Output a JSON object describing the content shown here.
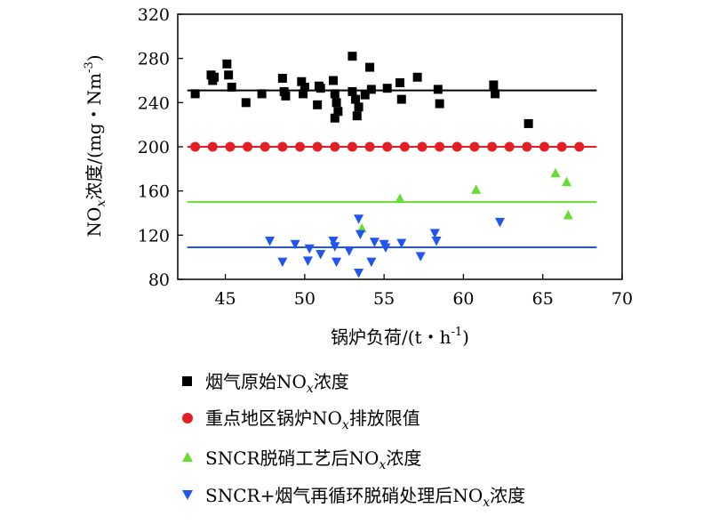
{
  "chart_data": {
    "type": "scatter",
    "xlabel": "锅炉负荷/(t・h⁻¹)",
    "ylabel": "NOₓ浓度/(mg・Nm⁻³)",
    "xlim": [
      42,
      70
    ],
    "ylim": [
      80,
      320
    ],
    "xticks": [
      45,
      50,
      55,
      60,
      65,
      70
    ],
    "yticks": [
      80,
      120,
      160,
      200,
      240,
      280,
      320
    ],
    "grid": false,
    "legend_position": "below",
    "series": [
      {
        "name": "烟气原始NOₓ浓度",
        "marker": "square",
        "color": "#000000",
        "points": [
          [
            43.1,
            248
          ],
          [
            44.1,
            265
          ],
          [
            44.2,
            260
          ],
          [
            44.3,
            263
          ],
          [
            45.1,
            275
          ],
          [
            45.2,
            265
          ],
          [
            45.4,
            254
          ],
          [
            46.3,
            240
          ],
          [
            47.3,
            248
          ],
          [
            48.6,
            262
          ],
          [
            48.7,
            250
          ],
          [
            48.8,
            246
          ],
          [
            49.8,
            259
          ],
          [
            49.9,
            248
          ],
          [
            50.0,
            254
          ],
          [
            50.8,
            238
          ],
          [
            50.9,
            255
          ],
          [
            51.0,
            253
          ],
          [
            51.8,
            260
          ],
          [
            51.9,
            248
          ],
          [
            52.0,
            240
          ],
          [
            51.9,
            226
          ],
          [
            52.1,
            232
          ],
          [
            53.0,
            282
          ],
          [
            53.0,
            250
          ],
          [
            53.2,
            243
          ],
          [
            53.3,
            228
          ],
          [
            53.4,
            236
          ],
          [
            53.8,
            247
          ],
          [
            54.1,
            272
          ],
          [
            54.2,
            252
          ],
          [
            55.2,
            253
          ],
          [
            56.0,
            258
          ],
          [
            56.1,
            243
          ],
          [
            57.1,
            263
          ],
          [
            58.4,
            252
          ],
          [
            58.5,
            239
          ],
          [
            61.9,
            256
          ],
          [
            62.0,
            248
          ],
          [
            64.1,
            221
          ]
        ],
        "trend": {
          "x": [
            42.6,
            68.4
          ],
          "y": [
            251,
            251
          ]
        }
      },
      {
        "name": "重点地区锅炉NOₓ排放限值",
        "marker": "circle",
        "color": "#e31e24",
        "points": [
          [
            43.1,
            200
          ],
          [
            44.2,
            200
          ],
          [
            45.3,
            200
          ],
          [
            46.4,
            200
          ],
          [
            47.5,
            200
          ],
          [
            48.6,
            200
          ],
          [
            49.7,
            200
          ],
          [
            50.8,
            200
          ],
          [
            51.9,
            200
          ],
          [
            53.0,
            200
          ],
          [
            54.1,
            200
          ],
          [
            55.2,
            200
          ],
          [
            56.3,
            200
          ],
          [
            57.4,
            200
          ],
          [
            58.5,
            200
          ],
          [
            59.6,
            200
          ],
          [
            60.7,
            200
          ],
          [
            61.8,
            200
          ],
          [
            62.9,
            200
          ],
          [
            64.0,
            200
          ],
          [
            65.1,
            200
          ],
          [
            66.2,
            200
          ],
          [
            67.3,
            200
          ]
        ],
        "trend": {
          "x": [
            42.6,
            68.4
          ],
          "y": [
            200,
            200
          ]
        }
      },
      {
        "name": "SNCR脱硝工艺后NOₓ浓度",
        "marker": "triangle-up",
        "color": "#66dd33",
        "points": [
          [
            53.6,
            126
          ],
          [
            56.0,
            153
          ],
          [
            60.8,
            161
          ],
          [
            65.8,
            176
          ],
          [
            66.5,
            168
          ],
          [
            66.6,
            138
          ]
        ],
        "trend": {
          "x": [
            42.6,
            68.4
          ],
          "y": [
            150,
            150
          ]
        }
      },
      {
        "name": "SNCR+烟气再循环脱硝处理后NOₓ浓度",
        "marker": "triangle-down",
        "color": "#2255ee",
        "points": [
          [
            47.8,
            115
          ],
          [
            48.6,
            96
          ],
          [
            49.4,
            112
          ],
          [
            50.2,
            97
          ],
          [
            50.3,
            108
          ],
          [
            51.0,
            103
          ],
          [
            51.8,
            115
          ],
          [
            51.9,
            110
          ],
          [
            52.0,
            96
          ],
          [
            52.8,
            106
          ],
          [
            53.4,
            135
          ],
          [
            53.5,
            121
          ],
          [
            53.4,
            86
          ],
          [
            54.2,
            96
          ],
          [
            54.4,
            114
          ],
          [
            55.0,
            112
          ],
          [
            55.1,
            109
          ],
          [
            56.1,
            113
          ],
          [
            57.3,
            101
          ],
          [
            58.2,
            122
          ],
          [
            58.3,
            115
          ],
          [
            62.3,
            132
          ]
        ],
        "trend": {
          "x": [
            42.6,
            68.4
          ],
          "y": [
            109,
            109
          ]
        }
      }
    ]
  },
  "legend": {
    "items": [
      {
        "pre": "烟气原始NO",
        "sub": "x",
        "post": "浓度"
      },
      {
        "pre": "重点地区锅炉NO",
        "sub": "x",
        "post": "排放限值"
      },
      {
        "pre": "SNCR脱硝工艺后NO",
        "sub": "x",
        "post": "浓度"
      },
      {
        "pre": "SNCR+烟气再循环脱硝处理后NO",
        "sub": "x",
        "post": "浓度"
      }
    ]
  },
  "axes": {
    "xlabel_text": "锅炉负荷/(t・h",
    "xlabel_sup": "-1",
    "xlabel_close": ")",
    "ylabel_pre": "NO",
    "ylabel_sub": "x",
    "ylabel_mid": "浓度/(mg・Nm",
    "ylabel_sup": "-3",
    "ylabel_close": ")"
  }
}
